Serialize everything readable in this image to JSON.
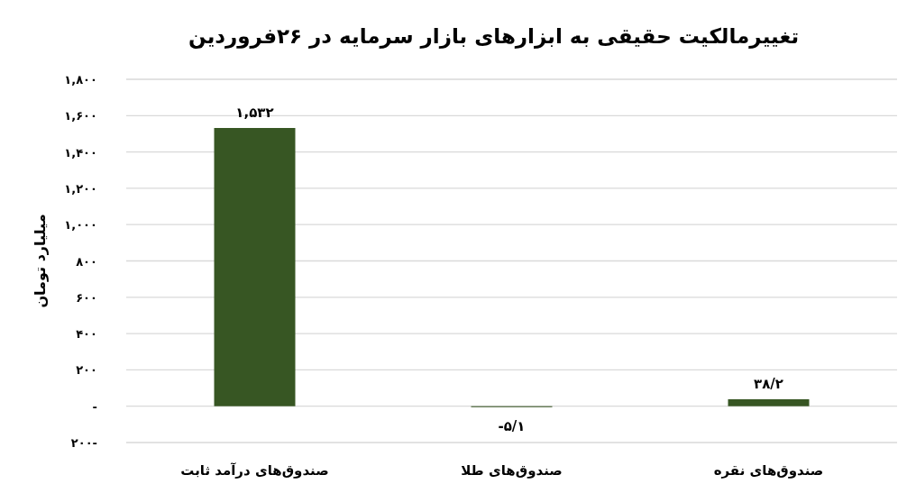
{
  "chart_data": {
    "type": "bar",
    "title": "تغییرمالکیت حقیقی به ابزارهای بازار سرمایه در ۲۶فروردین",
    "ylabel": "میلیارد تومان",
    "categories": [
      "صندوق‌های درآمد ثابت",
      "صندوق‌های طلا",
      "صندوق‌های نقره"
    ],
    "values": [
      1532,
      -5.1,
      38.2
    ],
    "value_labels": [
      "۱,۵۳۲",
      "-۵/۱",
      "۳۸/۲"
    ],
    "color": "#375623",
    "ylim": [
      -200,
      1800
    ],
    "yticks": [
      {
        "value": -200,
        "label": "۲۰۰-"
      },
      {
        "value": 0,
        "label": "-"
      },
      {
        "value": 200,
        "label": "۲۰۰"
      },
      {
        "value": 400,
        "label": "۴۰۰"
      },
      {
        "value": 600,
        "label": "۶۰۰"
      },
      {
        "value": 800,
        "label": "۸۰۰"
      },
      {
        "value": 1000,
        "label": "۱,۰۰۰"
      },
      {
        "value": 1200,
        "label": "۱,۲۰۰"
      },
      {
        "value": 1400,
        "label": "۱,۴۰۰"
      },
      {
        "value": 1600,
        "label": "۱,۶۰۰"
      },
      {
        "value": 1800,
        "label": "۱,۸۰۰"
      }
    ],
    "grid": "y"
  }
}
